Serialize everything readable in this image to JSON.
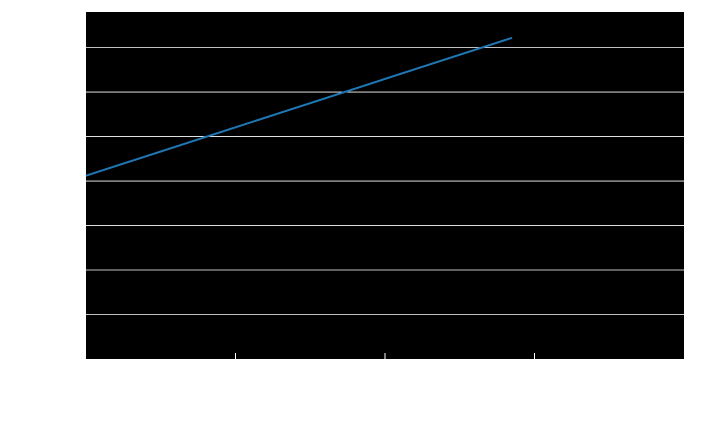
{
  "chart_data": {
    "type": "line",
    "title": "",
    "xlabel": "",
    "ylabel": "",
    "xlim": [
      0,
      4
    ],
    "ylim": [
      0,
      7.8
    ],
    "x_ticks": [
      1,
      2,
      3
    ],
    "y_gridlines": [
      1,
      2,
      3,
      4,
      5,
      6,
      7
    ],
    "grid": true,
    "legend": "none",
    "series": [
      {
        "x": [
          0,
          2.85
        ],
        "y": [
          4.12,
          7.22
        ]
      }
    ],
    "colors": {
      "background": "#000000",
      "grid": "#ffffff",
      "line": "#1f77b4",
      "page": "#ffffff"
    }
  }
}
